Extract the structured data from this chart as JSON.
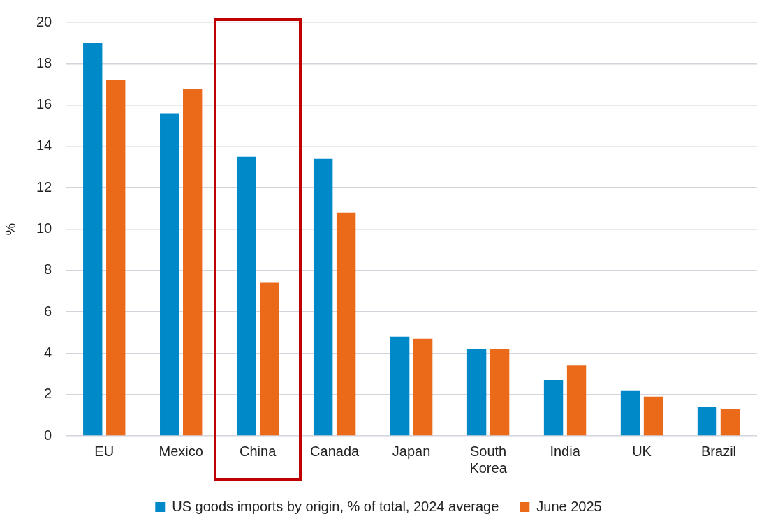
{
  "chart_data": {
    "type": "bar",
    "ylabel": "%",
    "categories": [
      "EU",
      "Mexico",
      "China",
      "Canada",
      "Japan",
      "South Korea",
      "India",
      "UK",
      "Brazil"
    ],
    "series": [
      {
        "name": "US goods imports by origin, % of total, 2024 average",
        "color": "#0089c9",
        "values": [
          19.0,
          15.6,
          13.5,
          13.4,
          4.8,
          4.2,
          2.7,
          2.2,
          1.4
        ]
      },
      {
        "name": "June 2025",
        "color": "#ea6a1a",
        "values": [
          17.2,
          16.8,
          7.4,
          10.8,
          4.7,
          4.2,
          3.4,
          1.9,
          1.3
        ]
      }
    ],
    "ylim": [
      0,
      20
    ],
    "yticks": [
      0,
      2,
      4,
      6,
      8,
      10,
      12,
      14,
      16,
      18,
      20
    ],
    "grid": "y",
    "legend": "bottom"
  }
}
